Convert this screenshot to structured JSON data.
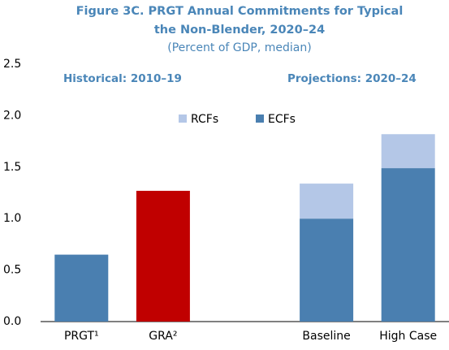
{
  "chart_data": {
    "type": "stacked_bar",
    "title": [
      "Figure 3C. PRGT Annual Commitments for Typical",
      "the Non-Blender, 2020–24"
    ],
    "subtitle": "(Percent of GDP, median)",
    "annotations": [
      "Historical: 2010–19",
      "Projections: 2020–24"
    ],
    "categories": [
      "PRGT¹",
      "GRA²",
      null,
      "Baseline",
      "High Case"
    ],
    "series": [
      {
        "name": "ECFs",
        "color": "#4a7fb0",
        "values": [
          0.65,
          null,
          null,
          1.0,
          1.49
        ]
      },
      {
        "color": "#c00000",
        "values": [
          null,
          1.27,
          null,
          null,
          null
        ]
      },
      {
        "name": "RCFs",
        "color": "#b4c7e7",
        "values": [
          null,
          null,
          null,
          0.34,
          0.33
        ]
      }
    ],
    "legend_order": [
      2,
      0
    ],
    "ylim": [
      0,
      2.5
    ],
    "yticks": [
      {
        "value": 0,
        "label": "0.0"
      },
      0.5,
      {
        "value": 1,
        "label": "1.0"
      },
      1.5,
      {
        "value": 2,
        "label": "2.0"
      },
      2.5
    ],
    "grid": false
  }
}
